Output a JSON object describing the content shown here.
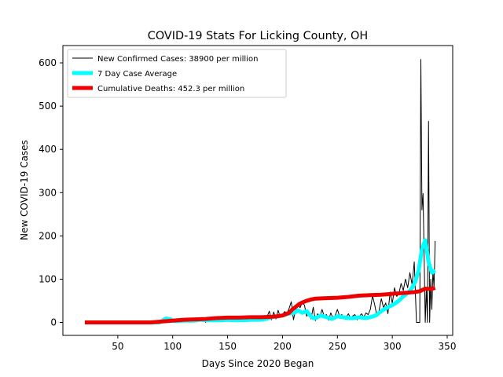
{
  "chart_data": {
    "type": "line",
    "title": "COVID-19 Stats For Licking County, OH",
    "xlabel": "Days Since 2020 Began",
    "ylabel": "New COVID-19 Cases",
    "xlim": [
      0,
      355
    ],
    "ylim": [
      -30,
      640
    ],
    "xticks": [
      50,
      100,
      150,
      200,
      250,
      300,
      350
    ],
    "yticks": [
      0,
      100,
      200,
      300,
      400,
      500,
      600
    ],
    "grid": false,
    "legend_position": "top-left",
    "series": [
      {
        "name": "New Confirmed Cases: 38900 per million",
        "color": "#000000",
        "style": "thin-line",
        "x": [
          20,
          40,
          60,
          80,
          89,
          91,
          93,
          95,
          97,
          99,
          101,
          104,
          110,
          115,
          120,
          125,
          128,
          130,
          132,
          135,
          140,
          145,
          150,
          153,
          155,
          158,
          160,
          163,
          166,
          170,
          175,
          178,
          180,
          183,
          185,
          188,
          190,
          192,
          194,
          196,
          198,
          200,
          202,
          204,
          206,
          208,
          210,
          212,
          214,
          216,
          218,
          220,
          222,
          224,
          226,
          228,
          230,
          232,
          234,
          236,
          238,
          240,
          242,
          244,
          246,
          248,
          250,
          252,
          254,
          256,
          258,
          260,
          262,
          264,
          266,
          268,
          270,
          272,
          274,
          276,
          278,
          280,
          282,
          284,
          286,
          288,
          290,
          292,
          294,
          296,
          298,
          300,
          302,
          304,
          306,
          308,
          310,
          312,
          314,
          316,
          318,
          320,
          322,
          323,
          324,
          325,
          326,
          327,
          328,
          329,
          330,
          331,
          332,
          333,
          334,
          335,
          336,
          337,
          338,
          339
        ],
        "y": [
          0,
          0,
          0,
          0,
          0,
          8,
          2,
          12,
          3,
          10,
          2,
          4,
          6,
          3,
          8,
          5,
          10,
          0,
          12,
          6,
          8,
          4,
          9,
          2,
          8,
          4,
          12,
          6,
          2,
          9,
          5,
          10,
          3,
          14,
          7,
          26,
          6,
          24,
          8,
          28,
          12,
          18,
          25,
          20,
          32,
          48,
          6,
          30,
          42,
          34,
          46,
          40,
          14,
          25,
          8,
          35,
          4,
          20,
          12,
          30,
          14,
          18,
          5,
          22,
          9,
          16,
          30,
          14,
          18,
          8,
          12,
          20,
          10,
          15,
          18,
          6,
          14,
          20,
          12,
          22,
          18,
          30,
          62,
          40,
          15,
          28,
          55,
          34,
          45,
          20,
          70,
          44,
          80,
          60,
          66,
          90,
          74,
          100,
          80,
          115,
          88,
          140,
          0,
          0,
          0,
          0,
          608,
          260,
          298,
          150,
          0,
          80,
          0,
          465,
          0,
          100,
          30,
          120,
          80,
          188
        ]
      },
      {
        "name": "7 Day Case Average",
        "color": "#00ffff",
        "style": "thick-line",
        "x": [
          20,
          40,
          60,
          80,
          88,
          90,
          92,
          94,
          96,
          98,
          100,
          102,
          104,
          110,
          115,
          120,
          125,
          130,
          135,
          140,
          145,
          150,
          155,
          160,
          165,
          170,
          175,
          180,
          185,
          190,
          195,
          200,
          205,
          210,
          212,
          214,
          216,
          218,
          220,
          222,
          224,
          226,
          228,
          230,
          235,
          240,
          245,
          250,
          255,
          260,
          265,
          270,
          275,
          280,
          285,
          290,
          295,
          300,
          305,
          310,
          315,
          318,
          321,
          324,
          327,
          330,
          333,
          336,
          339
        ],
        "y": [
          0,
          0,
          0,
          0,
          0,
          3,
          6,
          9,
          8,
          7,
          4,
          3,
          3,
          4,
          4,
          4,
          6,
          5,
          5,
          5,
          5,
          6,
          5,
          5,
          5,
          6,
          6,
          6,
          8,
          12,
          14,
          16,
          20,
          22,
          24,
          28,
          25,
          22,
          24,
          26,
          20,
          14,
          10,
          10,
          16,
          12,
          8,
          14,
          12,
          10,
          10,
          12,
          10,
          12,
          16,
          26,
          34,
          40,
          48,
          60,
          70,
          80,
          95,
          120,
          170,
          190,
          140,
          115,
          120
        ]
      },
      {
        "name": "Cumulative Deaths: 452.3 per million",
        "color": "#ee0000",
        "style": "thick-line",
        "x": [
          20,
          50,
          80,
          90,
          100,
          110,
          120,
          130,
          140,
          150,
          160,
          170,
          180,
          190,
          195,
          200,
          203,
          206,
          209,
          212,
          215,
          218,
          222,
          226,
          230,
          240,
          250,
          260,
          270,
          280,
          290,
          300,
          310,
          320,
          325,
          330,
          335,
          339
        ],
        "y": [
          0,
          0,
          0,
          2,
          4,
          6,
          7,
          8,
          10,
          11,
          11,
          12,
          12,
          13,
          14,
          16,
          19,
          22,
          30,
          36,
          42,
          46,
          50,
          53,
          55,
          56,
          57,
          59,
          62,
          63,
          64,
          66,
          68,
          70,
          72,
          78,
          77,
          80
        ]
      }
    ]
  }
}
